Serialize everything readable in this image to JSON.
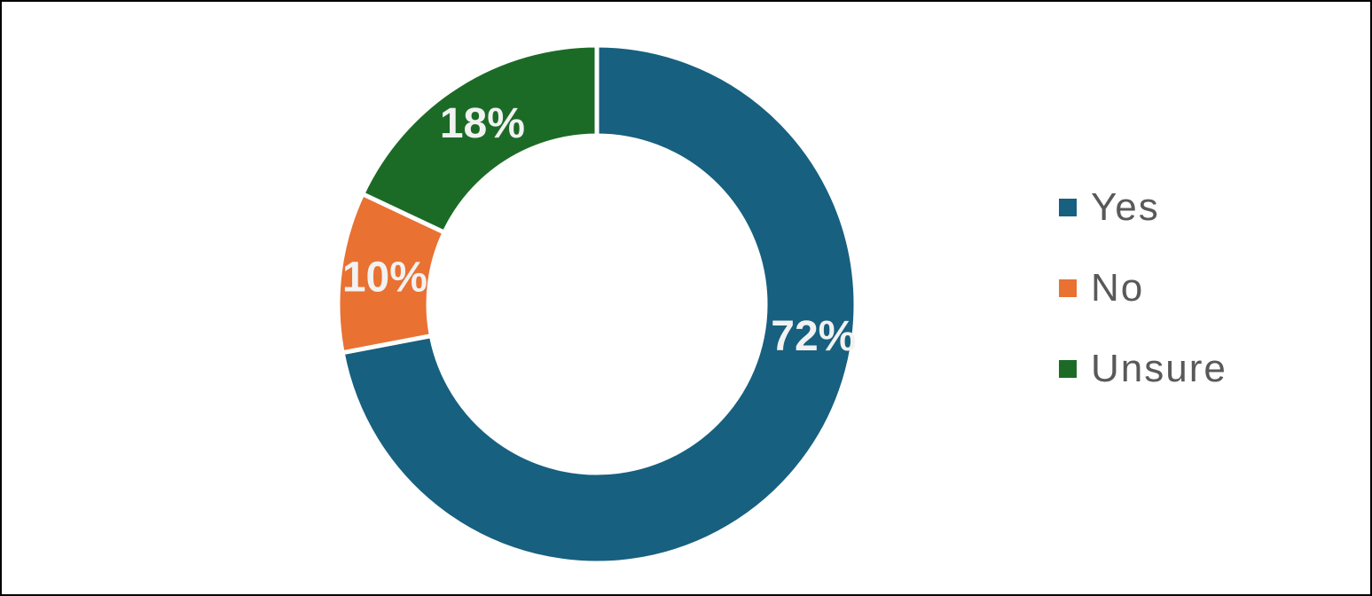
{
  "chart_data": {
    "type": "pie",
    "variant": "donut",
    "categories": [
      "Yes",
      "No",
      "Unsure"
    ],
    "values": [
      72,
      10,
      18
    ],
    "labels": [
      "72%",
      "10%",
      "18%"
    ],
    "colors": [
      "#17607f",
      "#e97132",
      "#1b6b26"
    ],
    "start_angle_deg": 0,
    "direction": "clockwise",
    "legend_position": "right",
    "label_color": "#f2f2f2",
    "legend_text_color": "#595959"
  }
}
